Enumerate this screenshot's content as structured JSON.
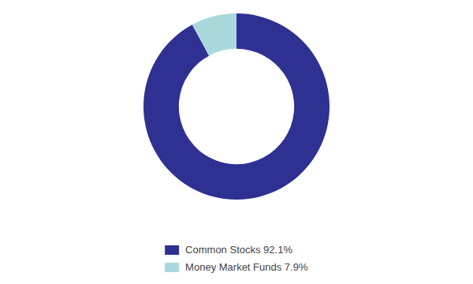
{
  "chart_data": {
    "type": "donut",
    "categories": [
      "Common Stocks 92.1%",
      "Money Market Funds 7.9%"
    ],
    "values": [
      92.1,
      7.9
    ],
    "colors": [
      "#2E3192",
      "#A8D8DC"
    ],
    "legend": "bottom"
  }
}
